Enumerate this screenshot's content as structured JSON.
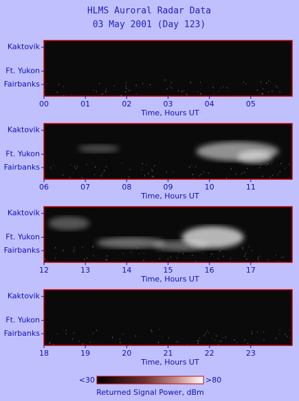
{
  "header": {
    "title": "HLMS Auroral Radar Data",
    "subtitle": "03 May 2001 (Day 123)"
  },
  "chart_data": [
    {
      "type": "heatmap",
      "x_label": "Time, Hours UT",
      "xlim": [
        0,
        6
      ],
      "xticks": [
        {
          "value": 0,
          "label": "00"
        },
        {
          "value": 1,
          "label": "01"
        },
        {
          "value": 2,
          "label": "02"
        },
        {
          "value": 3,
          "label": "03"
        },
        {
          "value": 4,
          "label": "04"
        },
        {
          "value": 5,
          "label": "05"
        }
      ],
      "y_categories": [
        "Kaktovik",
        "Ft. Yukon",
        "Fairbanks"
      ]
    },
    {
      "type": "heatmap",
      "x_label": "Time, Hours UT",
      "xlim": [
        6,
        12
      ],
      "xticks": [
        {
          "value": 6,
          "label": "06"
        },
        {
          "value": 7,
          "label": "07"
        },
        {
          "value": 8,
          "label": "08"
        },
        {
          "value": 9,
          "label": "09"
        },
        10,
        11
      ],
      "y_categories": [
        "Kaktovik",
        "Ft. Yukon",
        "Fairbanks"
      ]
    },
    {
      "type": "heatmap",
      "x_label": "Time, Hours UT",
      "xlim": [
        12,
        18
      ],
      "xticks": [
        12,
        13,
        14,
        15,
        16,
        17
      ],
      "y_categories": [
        "Kaktovik",
        "Ft. Yukon",
        "Fairbanks"
      ]
    },
    {
      "type": "heatmap",
      "x_label": "Time, Hours UT",
      "xlim": [
        18,
        24
      ],
      "xticks": [
        18,
        19,
        20,
        21,
        22,
        23
      ],
      "y_categories": [
        "Kaktovik",
        "Ft. Yukon",
        "Fairbanks"
      ]
    }
  ],
  "colorbar": {
    "ticks": [
      {
        "value": 30,
        "label": "<30"
      },
      {
        "value": 80,
        "label": ">80"
      }
    ],
    "label": "Returned Signal Power, dBm"
  }
}
